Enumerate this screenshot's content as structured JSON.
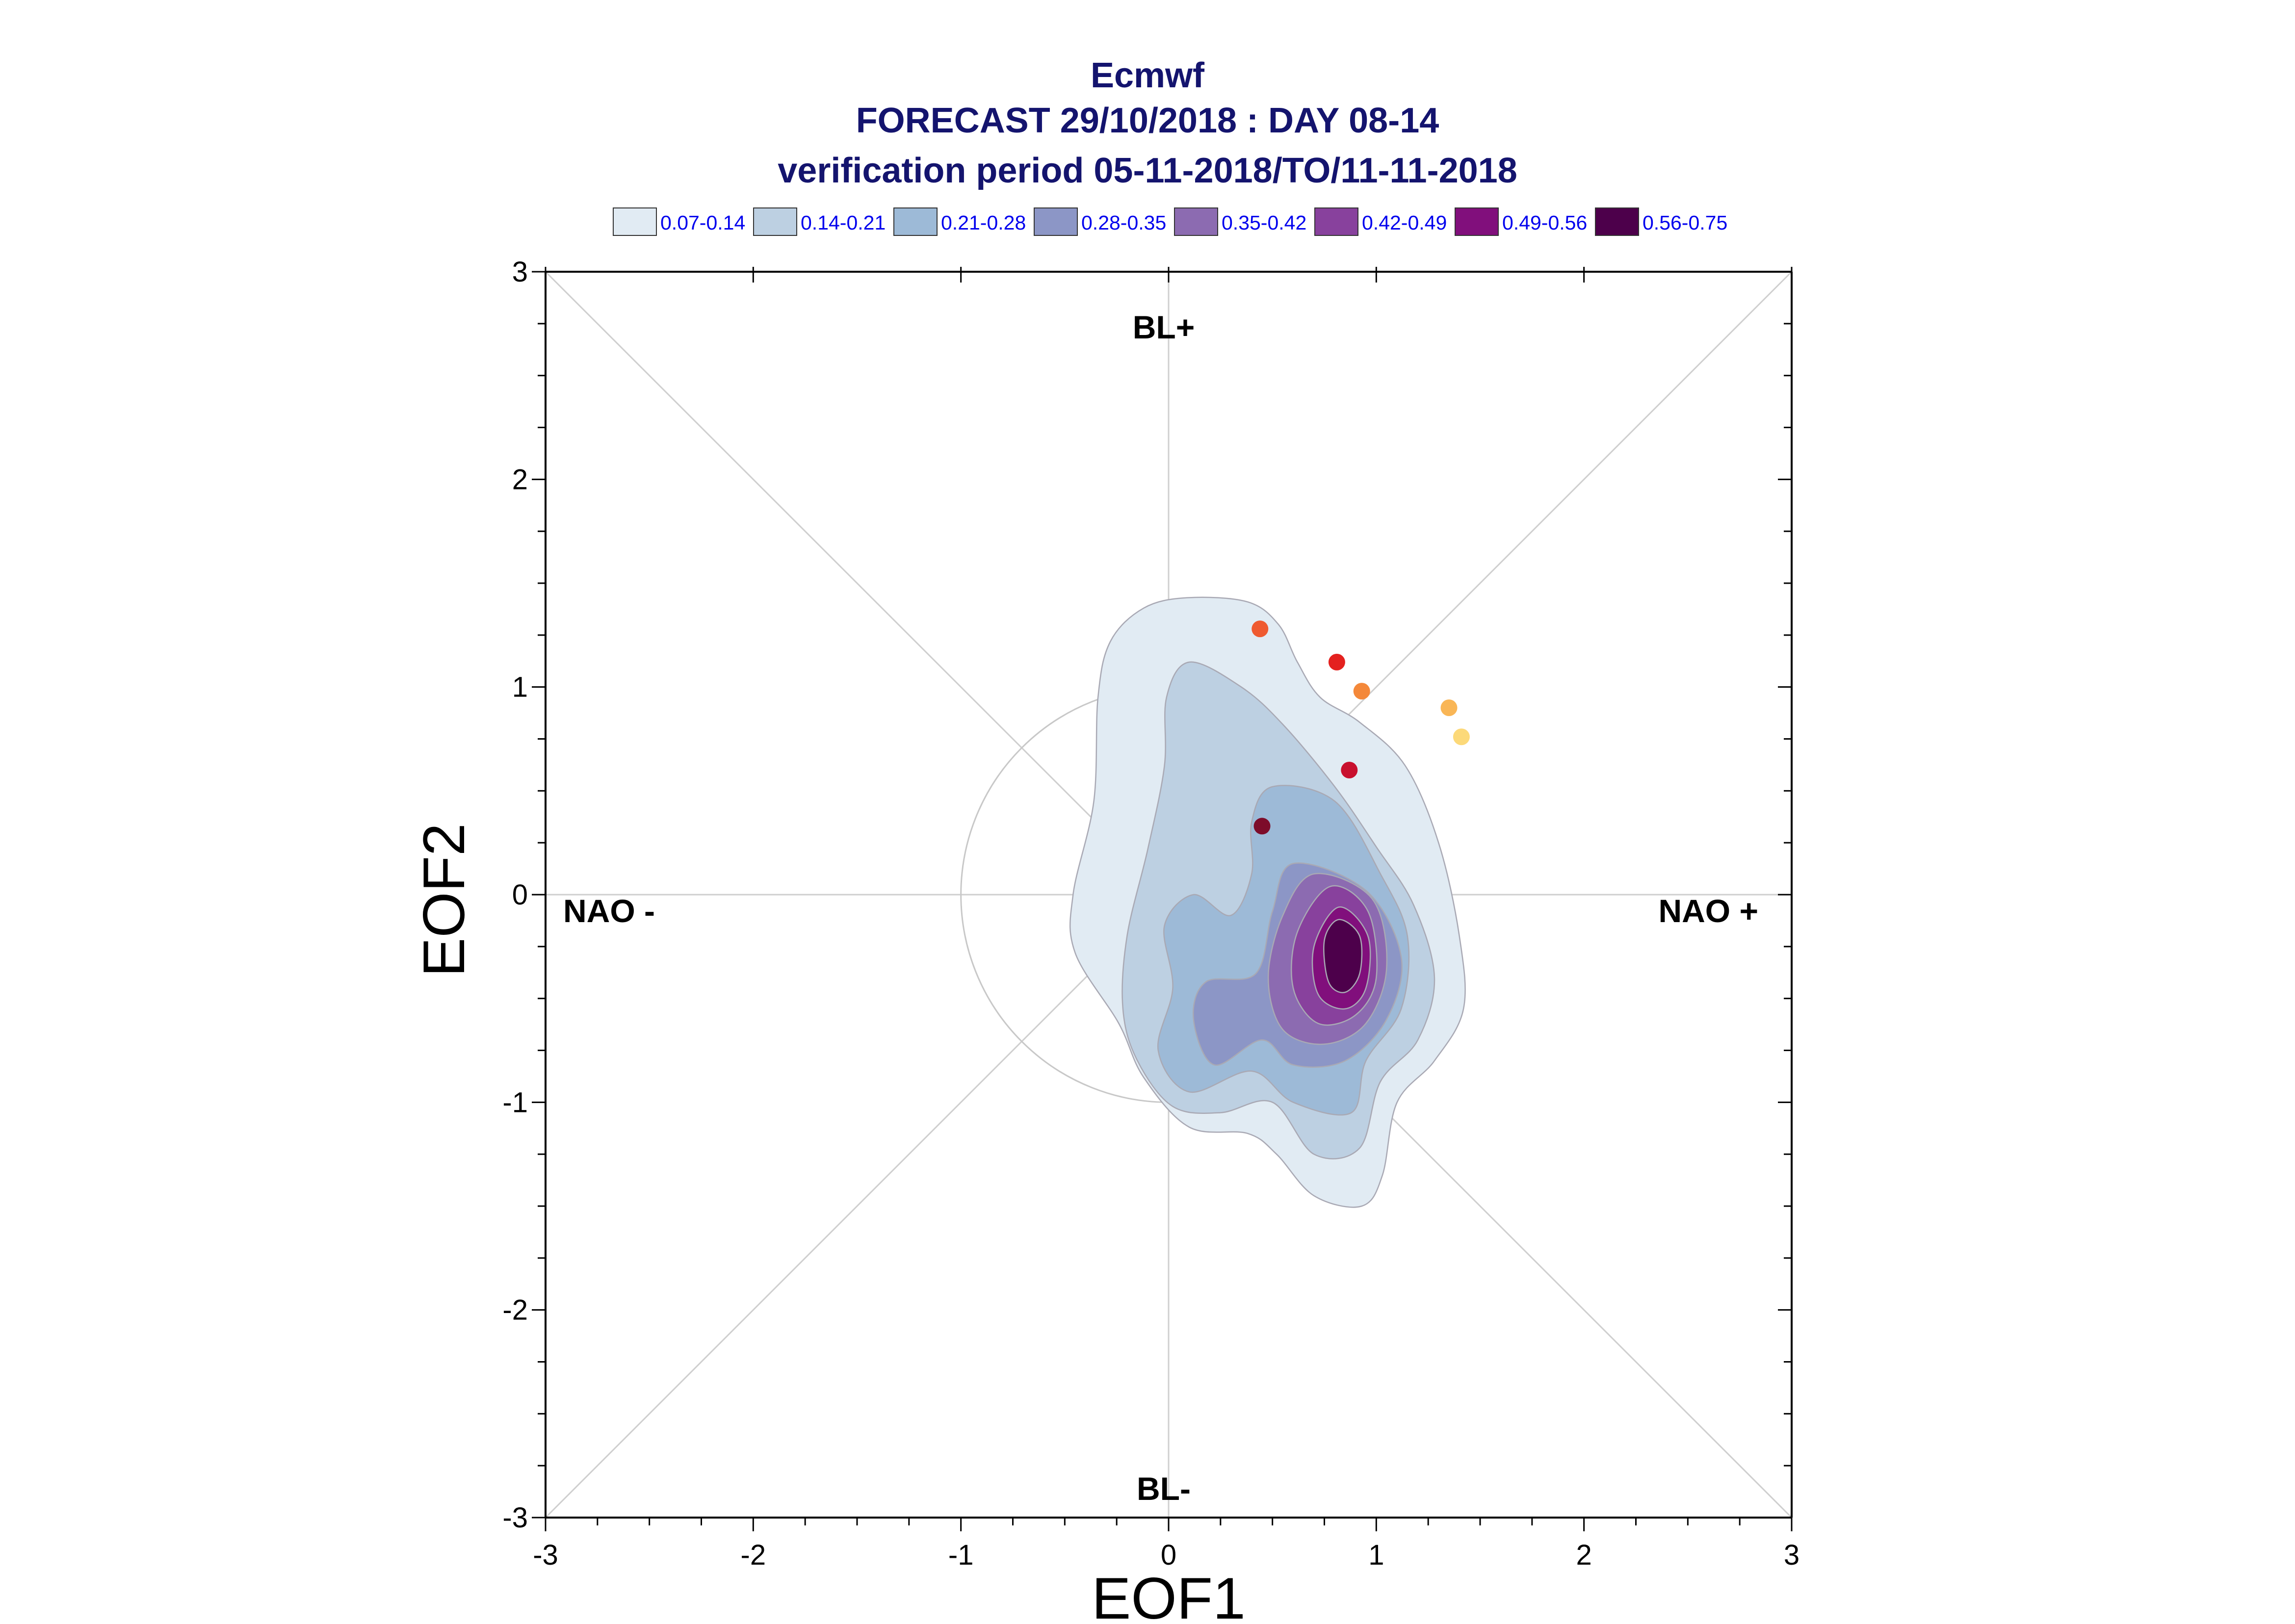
{
  "chart_data": {
    "type": "contour",
    "title": [
      "Ecmwf",
      "FORECAST 29/10/2018 : DAY 08-14",
      "verification period 05-11-2018/TO/11-11-2018"
    ],
    "xlabel": "EOF1",
    "ylabel": "EOF2",
    "xlim": [
      -3,
      3
    ],
    "ylim": [
      -3,
      3
    ],
    "xticks": [
      "-3",
      "-2",
      "-1",
      "0",
      "1",
      "2",
      "3"
    ],
    "yticks": [
      "-3",
      "-2",
      "-1",
      "0",
      "1",
      "2",
      "3"
    ],
    "regime_labels": {
      "top": "BL+",
      "bottom": "BL-",
      "left": "NAO -",
      "right": "NAO +"
    },
    "reference_circle_radius": 1,
    "legend": [
      {
        "label": "0.07-0.14",
        "color": "#e1ebf3"
      },
      {
        "label": "0.14-0.21",
        "color": "#bdd0e2"
      },
      {
        "label": "0.21-0.28",
        "color": "#9dbad7"
      },
      {
        "label": "0.28-0.35",
        "color": "#8c96c6"
      },
      {
        "label": "0.35-0.42",
        "color": "#8c6bb1"
      },
      {
        "label": "0.42-0.49",
        "color": "#88419d"
      },
      {
        "label": "0.49-0.56",
        "color": "#810f7c"
      },
      {
        "label": "0.56-0.75",
        "color": "#4d004b"
      }
    ],
    "contours": [
      {
        "level": "0.07-0.14",
        "color": "#e1ebf3",
        "points": [
          [
            0.09,
            1.43
          ],
          [
            0.38,
            1.41
          ],
          [
            0.53,
            1.3
          ],
          [
            0.62,
            1.12
          ],
          [
            0.73,
            0.95
          ],
          [
            0.92,
            0.83
          ],
          [
            1.14,
            0.62
          ],
          [
            1.3,
            0.25
          ],
          [
            1.4,
            -0.2
          ],
          [
            1.42,
            -0.55
          ],
          [
            1.28,
            -0.8
          ],
          [
            1.1,
            -1.0
          ],
          [
            1.03,
            -1.35
          ],
          [
            0.93,
            -1.5
          ],
          [
            0.7,
            -1.45
          ],
          [
            0.52,
            -1.25
          ],
          [
            0.38,
            -1.15
          ],
          [
            0.1,
            -1.12
          ],
          [
            -0.12,
            -0.88
          ],
          [
            -0.24,
            -0.62
          ],
          [
            -0.45,
            -0.28
          ],
          [
            -0.46,
            0.0
          ],
          [
            -0.36,
            0.45
          ],
          [
            -0.34,
            0.95
          ],
          [
            -0.28,
            1.22
          ],
          [
            -0.12,
            1.38
          ]
        ]
      },
      {
        "level": "0.14-0.21",
        "color": "#bdd0e2",
        "points": [
          [
            0.1,
            1.12
          ],
          [
            0.35,
            1.0
          ],
          [
            0.55,
            0.82
          ],
          [
            0.8,
            0.52
          ],
          [
            1.0,
            0.23
          ],
          [
            1.18,
            -0.05
          ],
          [
            1.28,
            -0.4
          ],
          [
            1.2,
            -0.7
          ],
          [
            1.02,
            -0.9
          ],
          [
            0.92,
            -1.22
          ],
          [
            0.7,
            -1.25
          ],
          [
            0.5,
            -1.0
          ],
          [
            0.25,
            -1.05
          ],
          [
            0.02,
            -1.02
          ],
          [
            -0.15,
            -0.8
          ],
          [
            -0.22,
            -0.55
          ],
          [
            -0.2,
            -0.2
          ],
          [
            -0.1,
            0.22
          ],
          [
            -0.02,
            0.62
          ],
          [
            -0.01,
            0.95
          ]
        ]
      },
      {
        "level": "0.21-0.28",
        "color": "#9dbad7",
        "points": [
          [
            0.5,
            0.52
          ],
          [
            0.8,
            0.45
          ],
          [
            1.02,
            0.1
          ],
          [
            1.15,
            -0.2
          ],
          [
            1.12,
            -0.55
          ],
          [
            0.95,
            -0.8
          ],
          [
            0.88,
            -1.05
          ],
          [
            0.6,
            -1.0
          ],
          [
            0.4,
            -0.85
          ],
          [
            0.1,
            -0.95
          ],
          [
            -0.05,
            -0.75
          ],
          [
            0.02,
            -0.45
          ],
          [
            -0.02,
            -0.15
          ],
          [
            0.12,
            0.0
          ],
          [
            0.3,
            -0.1
          ],
          [
            0.4,
            0.1
          ],
          [
            0.4,
            0.35
          ]
        ]
      },
      {
        "level": "0.28-0.35",
        "color": "#8c96c6",
        "points": [
          [
            0.6,
            0.15
          ],
          [
            0.95,
            0.02
          ],
          [
            1.12,
            -0.3
          ],
          [
            1.05,
            -0.6
          ],
          [
            0.85,
            -0.8
          ],
          [
            0.6,
            -0.82
          ],
          [
            0.45,
            -0.7
          ],
          [
            0.22,
            -0.82
          ],
          [
            0.12,
            -0.6
          ],
          [
            0.18,
            -0.42
          ],
          [
            0.42,
            -0.38
          ],
          [
            0.5,
            -0.08
          ]
        ]
      },
      {
        "level": "0.35-0.42",
        "color": "#8c6bb1",
        "points": [
          [
            0.7,
            0.1
          ],
          [
            0.98,
            -0.02
          ],
          [
            1.05,
            -0.35
          ],
          [
            0.95,
            -0.62
          ],
          [
            0.75,
            -0.72
          ],
          [
            0.55,
            -0.65
          ],
          [
            0.48,
            -0.4
          ],
          [
            0.55,
            -0.1
          ]
        ]
      },
      {
        "level": "0.42-0.49",
        "color": "#88419d",
        "points": [
          [
            0.78,
            0.04
          ],
          [
            0.96,
            -0.08
          ],
          [
            1.0,
            -0.4
          ],
          [
            0.9,
            -0.58
          ],
          [
            0.72,
            -0.62
          ],
          [
            0.6,
            -0.45
          ],
          [
            0.62,
            -0.18
          ]
        ]
      },
      {
        "level": "0.49-0.56",
        "color": "#810f7c",
        "points": [
          [
            0.82,
            -0.06
          ],
          [
            0.96,
            -0.2
          ],
          [
            0.95,
            -0.45
          ],
          [
            0.85,
            -0.55
          ],
          [
            0.72,
            -0.48
          ],
          [
            0.7,
            -0.25
          ]
        ]
      },
      {
        "level": "0.56-0.75",
        "color": "#4d004b",
        "points": [
          [
            0.82,
            -0.12
          ],
          [
            0.92,
            -0.2
          ],
          [
            0.92,
            -0.38
          ],
          [
            0.85,
            -0.47
          ],
          [
            0.77,
            -0.42
          ],
          [
            0.75,
            -0.22
          ]
        ]
      }
    ],
    "points": [
      {
        "x": 0.44,
        "y": 1.28,
        "color": "#ef5a30"
      },
      {
        "x": 0.81,
        "y": 1.12,
        "color": "#e4211f"
      },
      {
        "x": 0.93,
        "y": 0.98,
        "color": "#f4883a"
      },
      {
        "x": 1.35,
        "y": 0.9,
        "color": "#f9b656"
      },
      {
        "x": 1.41,
        "y": 0.76,
        "color": "#fcd979"
      },
      {
        "x": 0.87,
        "y": 0.6,
        "color": "#c8102e"
      },
      {
        "x": 0.45,
        "y": 0.33,
        "color": "#7d0c2a"
      }
    ]
  }
}
